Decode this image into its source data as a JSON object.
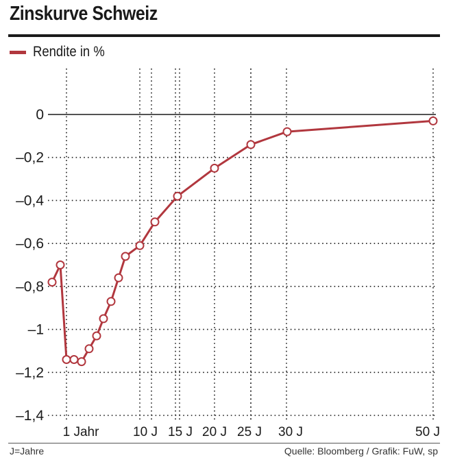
{
  "chart_data": {
    "type": "line",
    "title": "Zinskurve Schweiz",
    "xlabel": "",
    "ylabel": "",
    "legend": "top-left",
    "grid": true,
    "ylim": [
      -1.4,
      0
    ],
    "y_ticks": [
      0,
      -0.2,
      -0.4,
      -0.6,
      -0.8,
      -1,
      -1.2,
      -1.4
    ],
    "y_tick_labels": [
      "0",
      "–0,2",
      "–0,4",
      "–0,6",
      "–0,8",
      "–1",
      "–1,2",
      "–1,4"
    ],
    "x_ticks": [
      {
        "label": "1 Jahr"
      },
      {
        "label": "10 J"
      },
      {
        "label": "15 J"
      },
      {
        "label": "20 J"
      },
      {
        "label": "25 J"
      },
      {
        "label": "30 J"
      },
      {
        "label": "50 J"
      }
    ],
    "series": [
      {
        "name": "Rendite in %",
        "color": "#b1373e",
        "values": [
          -0.78,
          -0.7,
          -1.14,
          -1.14,
          -1.15,
          -1.09,
          -1.03,
          -0.95,
          -0.87,
          -0.76,
          -0.66,
          -0.61,
          -0.5,
          -0.38,
          -0.25,
          -0.14,
          -0.08,
          -0.03
        ]
      }
    ]
  },
  "footer": {
    "left": "J=Jahre",
    "right": "Quelle: Bloomberg / Grafik: FuW, sp"
  }
}
